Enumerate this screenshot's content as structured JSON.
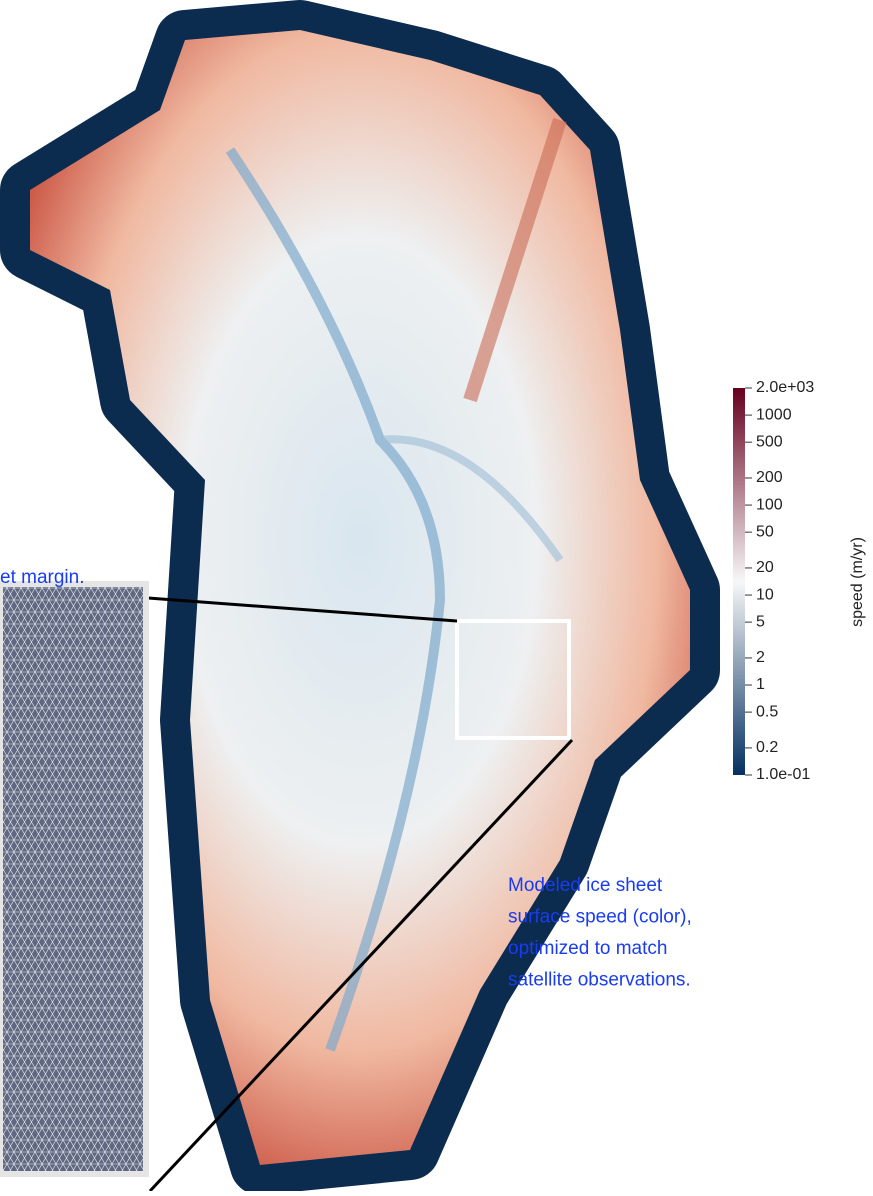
{
  "annotations": {
    "inset_caption": "et margin.",
    "caption_lines": [
      "Modeled ice sheet",
      "surface speed (color),",
      "optimized to match",
      "satellite observations."
    ]
  },
  "colorbar": {
    "label": "speed (m/yr)",
    "scale": "log",
    "lim": [
      0.1,
      2000
    ],
    "colors": [
      "#053061",
      "#f7f7f7",
      "#67001f"
    ],
    "ticks": [
      {
        "value": 2000,
        "label": "2.0e+03"
      },
      1000,
      500,
      200,
      100,
      50,
      20,
      10,
      5,
      2,
      1,
      0.5,
      0.2,
      {
        "value": 0.1,
        "label": "1.0e-01"
      }
    ]
  }
}
